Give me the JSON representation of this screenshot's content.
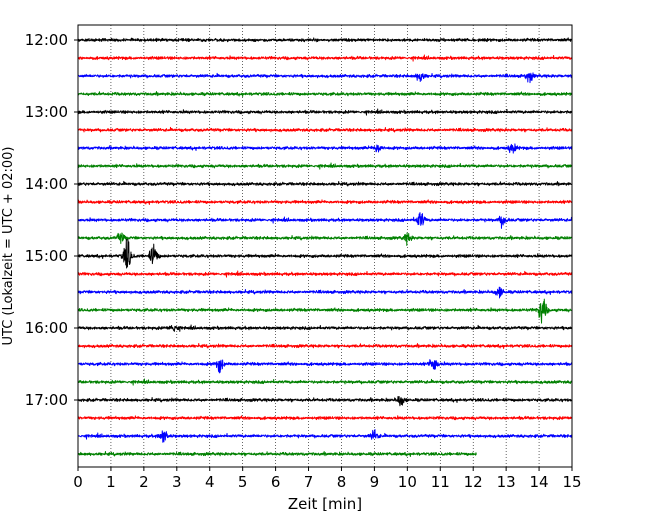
{
  "chart_data": {
    "type": "line",
    "title": "",
    "xlabel": "Zeit  [min]",
    "ylabel": "UTC (Lokalzeit = UTC + 02:00)",
    "xlim": [
      0,
      15
    ],
    "x_ticks": [
      0,
      1,
      2,
      3,
      4,
      5,
      6,
      7,
      8,
      9,
      10,
      11,
      12,
      13,
      14,
      15
    ],
    "y_tick_labels": [
      "12:00",
      "13:00",
      "14:00",
      "15:00",
      "16:00",
      "17:00"
    ],
    "grid": "vertical dotted",
    "trace_colors": [
      "#000000",
      "#ff0000",
      "#0000ff",
      "#008000"
    ],
    "traces": [
      {
        "start": "12:00",
        "color": "#000000",
        "x_end": 15,
        "events": []
      },
      {
        "start": "12:15",
        "color": "#ff0000",
        "x_end": 15,
        "events": []
      },
      {
        "start": "12:30",
        "color": "#0000ff",
        "x_end": 15,
        "events": [
          {
            "x": 10.4,
            "amp": 0.35
          },
          {
            "x": 13.7,
            "amp": 0.3
          }
        ]
      },
      {
        "start": "12:45",
        "color": "#008000",
        "x_end": 15,
        "events": []
      },
      {
        "start": "13:00",
        "color": "#000000",
        "x_end": 15,
        "events": []
      },
      {
        "start": "13:15",
        "color": "#ff0000",
        "x_end": 15,
        "events": []
      },
      {
        "start": "13:30",
        "color": "#0000ff",
        "x_end": 15,
        "events": [
          {
            "x": 9.1,
            "amp": 0.3
          },
          {
            "x": 13.2,
            "amp": 0.3
          }
        ]
      },
      {
        "start": "13:45",
        "color": "#008000",
        "x_end": 15,
        "events": []
      },
      {
        "start": "14:00",
        "color": "#000000",
        "x_end": 15,
        "events": []
      },
      {
        "start": "14:15",
        "color": "#ff0000",
        "x_end": 15,
        "events": []
      },
      {
        "start": "14:30",
        "color": "#0000ff",
        "x_end": 15,
        "events": [
          {
            "x": 10.4,
            "amp": 0.55
          },
          {
            "x": 12.9,
            "amp": 0.35
          }
        ]
      },
      {
        "start": "14:45",
        "color": "#008000",
        "x_end": 15,
        "events": [
          {
            "x": 1.3,
            "amp": 0.3
          },
          {
            "x": 10.0,
            "amp": 0.3
          }
        ]
      },
      {
        "start": "15:00",
        "color": "#000000",
        "x_end": 15,
        "events": [
          {
            "x": 1.5,
            "amp": 1.0
          },
          {
            "x": 2.3,
            "amp": 0.7
          }
        ]
      },
      {
        "start": "15:15",
        "color": "#ff0000",
        "x_end": 15,
        "events": []
      },
      {
        "start": "15:30",
        "color": "#0000ff",
        "x_end": 15,
        "events": [
          {
            "x": 12.8,
            "amp": 0.35
          }
        ]
      },
      {
        "start": "15:45",
        "color": "#008000",
        "x_end": 15,
        "events": [
          {
            "x": 14.1,
            "amp": 0.9
          }
        ]
      },
      {
        "start": "16:00",
        "color": "#000000",
        "x_end": 15,
        "events": [
          {
            "x": 2.9,
            "amp": 0.3
          }
        ]
      },
      {
        "start": "16:15",
        "color": "#ff0000",
        "x_end": 15,
        "events": []
      },
      {
        "start": "16:30",
        "color": "#0000ff",
        "x_end": 15,
        "events": [
          {
            "x": 4.3,
            "amp": 0.45
          },
          {
            "x": 10.8,
            "amp": 0.5
          }
        ]
      },
      {
        "start": "16:45",
        "color": "#008000",
        "x_end": 15,
        "events": []
      },
      {
        "start": "17:00",
        "color": "#000000",
        "x_end": 15,
        "events": [
          {
            "x": 9.8,
            "amp": 0.35
          }
        ]
      },
      {
        "start": "17:15",
        "color": "#ff0000",
        "x_end": 15,
        "events": []
      },
      {
        "start": "17:30",
        "color": "#0000ff",
        "x_end": 15,
        "events": [
          {
            "x": 2.6,
            "amp": 0.45
          },
          {
            "x": 9.0,
            "amp": 0.3
          }
        ]
      },
      {
        "start": "17:45",
        "color": "#008000",
        "x_end": 12.1,
        "events": []
      }
    ]
  }
}
